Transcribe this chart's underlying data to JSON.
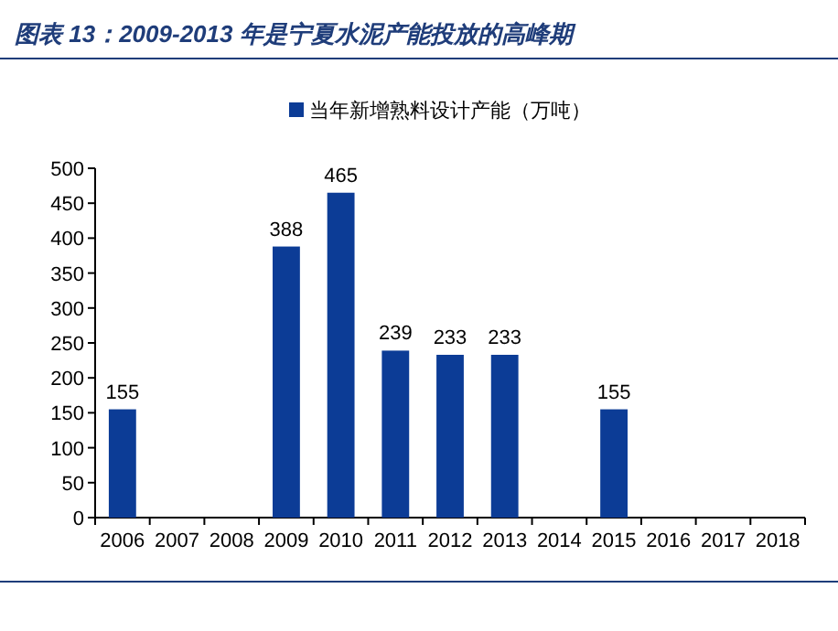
{
  "chart_data": {
    "type": "bar",
    "title": "图表 13：2009-2013 年是宁夏水泥产能投放的高峰期",
    "categories": [
      "2006",
      "2007",
      "2008",
      "2009",
      "2010",
      "2011",
      "2012",
      "2013",
      "2014",
      "2015",
      "2016",
      "2017",
      "2018"
    ],
    "series": [
      {
        "name": "当年新增熟料设计产能（万吨）",
        "color": "#0c3c96",
        "values": [
          155,
          null,
          null,
          388,
          465,
          239,
          233,
          233,
          null,
          155,
          null,
          null,
          null
        ]
      }
    ],
    "data_labels": true,
    "ylim": [
      0,
      500
    ],
    "yticks": [
      0,
      50,
      100,
      150,
      200,
      250,
      300,
      350,
      400,
      450,
      500
    ],
    "grid": false,
    "legend": "top"
  }
}
